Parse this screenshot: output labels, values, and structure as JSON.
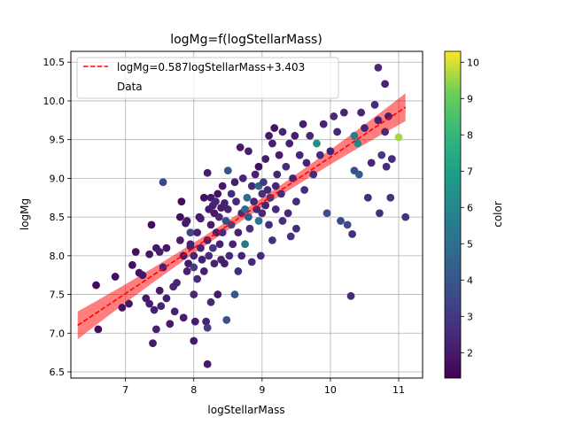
{
  "chart_data": {
    "type": "scatter",
    "title": "logMg=f(logStellarMass)",
    "xlabel": "logStellarMass",
    "ylabel": "logMg",
    "xlim": [
      6.2,
      11.35
    ],
    "ylim": [
      6.42,
      10.64
    ],
    "xticks": [
      7,
      8,
      9,
      10,
      11
    ],
    "yticks": [
      6.5,
      7.0,
      7.5,
      8.0,
      8.5,
      9.0,
      9.5,
      10.0,
      10.5
    ],
    "xtick_labels": [
      "7",
      "8",
      "9",
      "10",
      "11"
    ],
    "ytick_labels": [
      "6.5",
      "7.0",
      "7.5",
      "8.0",
      "8.5",
      "9.0",
      "9.5",
      "10.0",
      "10.5"
    ],
    "grid": true,
    "legend_position": "top-left",
    "legend": {
      "fit_label": "logMg=0.587logStellarMass+3.403",
      "data_label": "Data"
    },
    "fit": {
      "slope": 0.587,
      "intercept": 3.403,
      "x_range": [
        6.3,
        11.1
      ],
      "color": "#ff0000",
      "band_color": "#ff0000"
    },
    "colorbar": {
      "label": "color",
      "min": 1.3,
      "max": 10.3,
      "ticks": [
        2,
        3,
        4,
        5,
        6,
        7,
        8,
        9,
        10
      ],
      "tick_labels": [
        "2",
        "3",
        "4",
        "5",
        "6",
        "7",
        "8",
        "9",
        "10"
      ],
      "colormap": "viridis"
    },
    "points": [
      [
        6.57,
        7.62,
        1.6
      ],
      [
        6.6,
        7.05,
        1.6
      ],
      [
        6.85,
        7.73,
        1.7
      ],
      [
        6.95,
        7.33,
        1.8
      ],
      [
        7.05,
        7.38,
        1.9
      ],
      [
        7.1,
        7.88,
        1.7
      ],
      [
        7.15,
        8.05,
        1.6
      ],
      [
        7.2,
        7.78,
        1.8
      ],
      [
        7.25,
        7.75,
        1.9
      ],
      [
        7.3,
        7.45,
        2.0
      ],
      [
        7.35,
        7.38,
        2.1
      ],
      [
        7.35,
        8.02,
        1.9
      ],
      [
        7.38,
        8.4,
        1.7
      ],
      [
        7.4,
        6.87,
        2.0
      ],
      [
        7.42,
        7.3,
        2.2
      ],
      [
        7.45,
        8.1,
        2.0
      ],
      [
        7.45,
        7.05,
        2.2
      ],
      [
        7.5,
        8.05,
        2.1
      ],
      [
        7.5,
        7.55,
        2.0
      ],
      [
        7.52,
        7.35,
        2.3
      ],
      [
        7.55,
        8.95,
        3.5
      ],
      [
        7.55,
        7.85,
        2.2
      ],
      [
        7.6,
        7.45,
        2.1
      ],
      [
        7.6,
        8.1,
        1.9
      ],
      [
        7.65,
        7.12,
        2.0
      ],
      [
        7.7,
        7.6,
        2.4
      ],
      [
        7.72,
        7.28,
        2.2
      ],
      [
        7.75,
        7.65,
        2.3
      ],
      [
        7.8,
        8.2,
        2.1
      ],
      [
        7.8,
        8.5,
        1.7
      ],
      [
        7.82,
        8.7,
        1.6
      ],
      [
        7.85,
        8.0,
        2.0
      ],
      [
        7.85,
        7.2,
        2.1
      ],
      [
        7.88,
        8.42,
        1.9
      ],
      [
        7.9,
        8.45,
        2.1
      ],
      [
        7.9,
        7.8,
        2.2
      ],
      [
        7.92,
        7.9,
        2.0
      ],
      [
        7.95,
        8.15,
        2.3
      ],
      [
        7.95,
        8.3,
        3.5
      ],
      [
        7.95,
        8.12,
        2.2
      ],
      [
        8.0,
        6.9,
        2.0
      ],
      [
        8.0,
        7.85,
        3.2
      ],
      [
        8.0,
        7.5,
        2.4
      ],
      [
        8.0,
        8.0,
        2.3
      ],
      [
        8.02,
        7.15,
        2.1
      ],
      [
        8.05,
        7.7,
        2.5
      ],
      [
        8.05,
        8.3,
        2.2
      ],
      [
        8.08,
        8.5,
        2.0
      ],
      [
        8.1,
        8.48,
        2.2
      ],
      [
        8.1,
        8.1,
        2.3
      ],
      [
        8.12,
        7.95,
        2.1
      ],
      [
        8.15,
        8.75,
        1.7
      ],
      [
        8.15,
        7.8,
        2.2
      ],
      [
        8.18,
        7.15,
        2.3
      ],
      [
        8.2,
        6.6,
        2.0
      ],
      [
        8.2,
        8.2,
        2.1
      ],
      [
        8.2,
        9.07,
        2.1
      ],
      [
        8.2,
        7.07,
        3.2
      ],
      [
        8.22,
        8.6,
        2.0
      ],
      [
        8.22,
        8.0,
        2.5
      ],
      [
        8.25,
        8.75,
        1.9
      ],
      [
        8.25,
        8.4,
        2.1
      ],
      [
        8.25,
        7.4,
        2.4
      ],
      [
        8.28,
        8.65,
        2.2
      ],
      [
        8.28,
        8.1,
        3.0
      ],
      [
        8.3,
        8.55,
        2.0
      ],
      [
        8.3,
        7.9,
        2.2
      ],
      [
        8.32,
        8.7,
        2.3
      ],
      [
        8.33,
        8.3,
        2.1
      ],
      [
        8.35,
        8.8,
        1.8
      ],
      [
        8.35,
        7.5,
        2.0
      ],
      [
        8.37,
        8.5,
        2.4
      ],
      [
        8.38,
        8.15,
        2.2
      ],
      [
        8.4,
        8.62,
        2.1
      ],
      [
        8.4,
        7.95,
        2.3
      ],
      [
        8.42,
        8.9,
        2.0
      ],
      [
        8.42,
        8.3,
        2.5
      ],
      [
        8.45,
        8.68,
        2.2
      ],
      [
        8.45,
        7.9,
        2.1
      ],
      [
        8.47,
        8.45,
        3.8
      ],
      [
        8.48,
        7.17,
        3.8
      ],
      [
        8.5,
        8.6,
        2.3
      ],
      [
        8.5,
        9.1,
        4.0
      ],
      [
        8.52,
        8.0,
        2.4
      ],
      [
        8.55,
        8.8,
        2.6
      ],
      [
        8.55,
        8.4,
        3.3
      ],
      [
        8.57,
        8.15,
        2.3
      ],
      [
        8.6,
        7.5,
        4.0
      ],
      [
        8.6,
        8.95,
        2.1
      ],
      [
        8.62,
        8.7,
        2.4
      ],
      [
        8.65,
        8.3,
        2.2
      ],
      [
        8.65,
        7.8,
        2.6
      ],
      [
        8.68,
        9.4,
        2.0
      ],
      [
        8.7,
        8.55,
        2.5
      ],
      [
        8.7,
        8.0,
        2.3
      ],
      [
        8.72,
        9.0,
        2.4
      ],
      [
        8.75,
        8.6,
        4.7
      ],
      [
        8.75,
        8.15,
        5.2
      ],
      [
        8.78,
        8.75,
        4.9
      ],
      [
        8.8,
        8.5,
        4.2
      ],
      [
        8.8,
        9.35,
        2.2
      ],
      [
        8.82,
        8.35,
        2.6
      ],
      [
        8.85,
        8.9,
        2.5
      ],
      [
        8.85,
        7.92,
        2.6
      ],
      [
        8.88,
        8.7,
        2.3
      ],
      [
        8.9,
        9.05,
        2.2
      ],
      [
        8.92,
        8.6,
        2.4
      ],
      [
        8.95,
        9.15,
        1.7
      ],
      [
        8.95,
        8.45,
        5.3
      ],
      [
        8.95,
        8.9,
        4.6
      ],
      [
        8.98,
        8.0,
        2.6
      ],
      [
        9.0,
        8.8,
        2.7
      ],
      [
        9.0,
        8.55,
        2.4
      ],
      [
        9.02,
        8.95,
        3.0
      ],
      [
        9.05,
        9.25,
        2.1
      ],
      [
        9.05,
        8.65,
        2.3
      ],
      [
        9.08,
        8.85,
        2.5
      ],
      [
        9.1,
        9.55,
        2.0
      ],
      [
        9.1,
        8.4,
        2.6
      ],
      [
        9.12,
        8.75,
        3.1
      ],
      [
        9.15,
        9.45,
        2.2
      ],
      [
        9.15,
        8.2,
        2.7
      ],
      [
        9.18,
        9.65,
        1.8
      ],
      [
        9.2,
        8.9,
        2.4
      ],
      [
        9.2,
        8.6,
        2.5
      ],
      [
        9.22,
        9.05,
        2.3
      ],
      [
        9.25,
        9.3,
        2.1
      ],
      [
        9.28,
        8.8,
        2.5
      ],
      [
        9.3,
        8.45,
        2.7
      ],
      [
        9.3,
        9.6,
        2.3
      ],
      [
        9.35,
        9.15,
        2.6
      ],
      [
        9.38,
        8.55,
        2.4
      ],
      [
        9.4,
        9.45,
        2.2
      ],
      [
        9.42,
        8.25,
        2.8
      ],
      [
        9.45,
        9.0,
        2.3
      ],
      [
        9.48,
        9.55,
        2.1
      ],
      [
        9.5,
        8.7,
        2.5
      ],
      [
        9.5,
        8.35,
        2.6
      ],
      [
        9.55,
        9.3,
        2.4
      ],
      [
        9.6,
        9.7,
        2.2
      ],
      [
        9.62,
        8.85,
        2.6
      ],
      [
        9.65,
        9.2,
        2.3
      ],
      [
        9.7,
        9.55,
        2.4
      ],
      [
        9.75,
        9.05,
        2.5
      ],
      [
        9.8,
        9.45,
        6.2
      ],
      [
        9.85,
        9.3,
        2.6
      ],
      [
        9.9,
        9.7,
        2.3
      ],
      [
        9.95,
        8.55,
        3.7
      ],
      [
        10.0,
        9.35,
        2.2
      ],
      [
        10.05,
        9.8,
        2.5
      ],
      [
        10.1,
        9.6,
        2.4
      ],
      [
        10.15,
        8.45,
        3.6
      ],
      [
        10.2,
        9.85,
        2.3
      ],
      [
        10.25,
        8.4,
        3.5
      ],
      [
        10.3,
        7.48,
        2.5
      ],
      [
        10.32,
        8.28,
        2.6
      ],
      [
        10.35,
        9.55,
        5.6
      ],
      [
        10.35,
        9.1,
        3.8
      ],
      [
        10.4,
        9.45,
        6.0
      ],
      [
        10.42,
        9.05,
        4.2
      ],
      [
        10.45,
        9.85,
        2.4
      ],
      [
        10.5,
        9.65,
        2.3
      ],
      [
        10.55,
        8.75,
        2.6
      ],
      [
        10.6,
        9.2,
        2.4
      ],
      [
        10.65,
        9.95,
        2.5
      ],
      [
        10.7,
        9.75,
        2.2
      ],
      [
        10.7,
        10.43,
        2.5
      ],
      [
        10.72,
        8.55,
        2.7
      ],
      [
        10.75,
        9.3,
        3.1
      ],
      [
        10.8,
        9.6,
        2.4
      ],
      [
        10.8,
        10.22,
        2.3
      ],
      [
        10.82,
        9.15,
        2.6
      ],
      [
        10.85,
        9.8,
        2.2
      ],
      [
        10.88,
        8.75,
        2.8
      ],
      [
        10.9,
        9.25,
        2.5
      ],
      [
        11.0,
        9.53,
        9.6
      ],
      [
        11.1,
        8.5,
        2.8
      ]
    ]
  }
}
